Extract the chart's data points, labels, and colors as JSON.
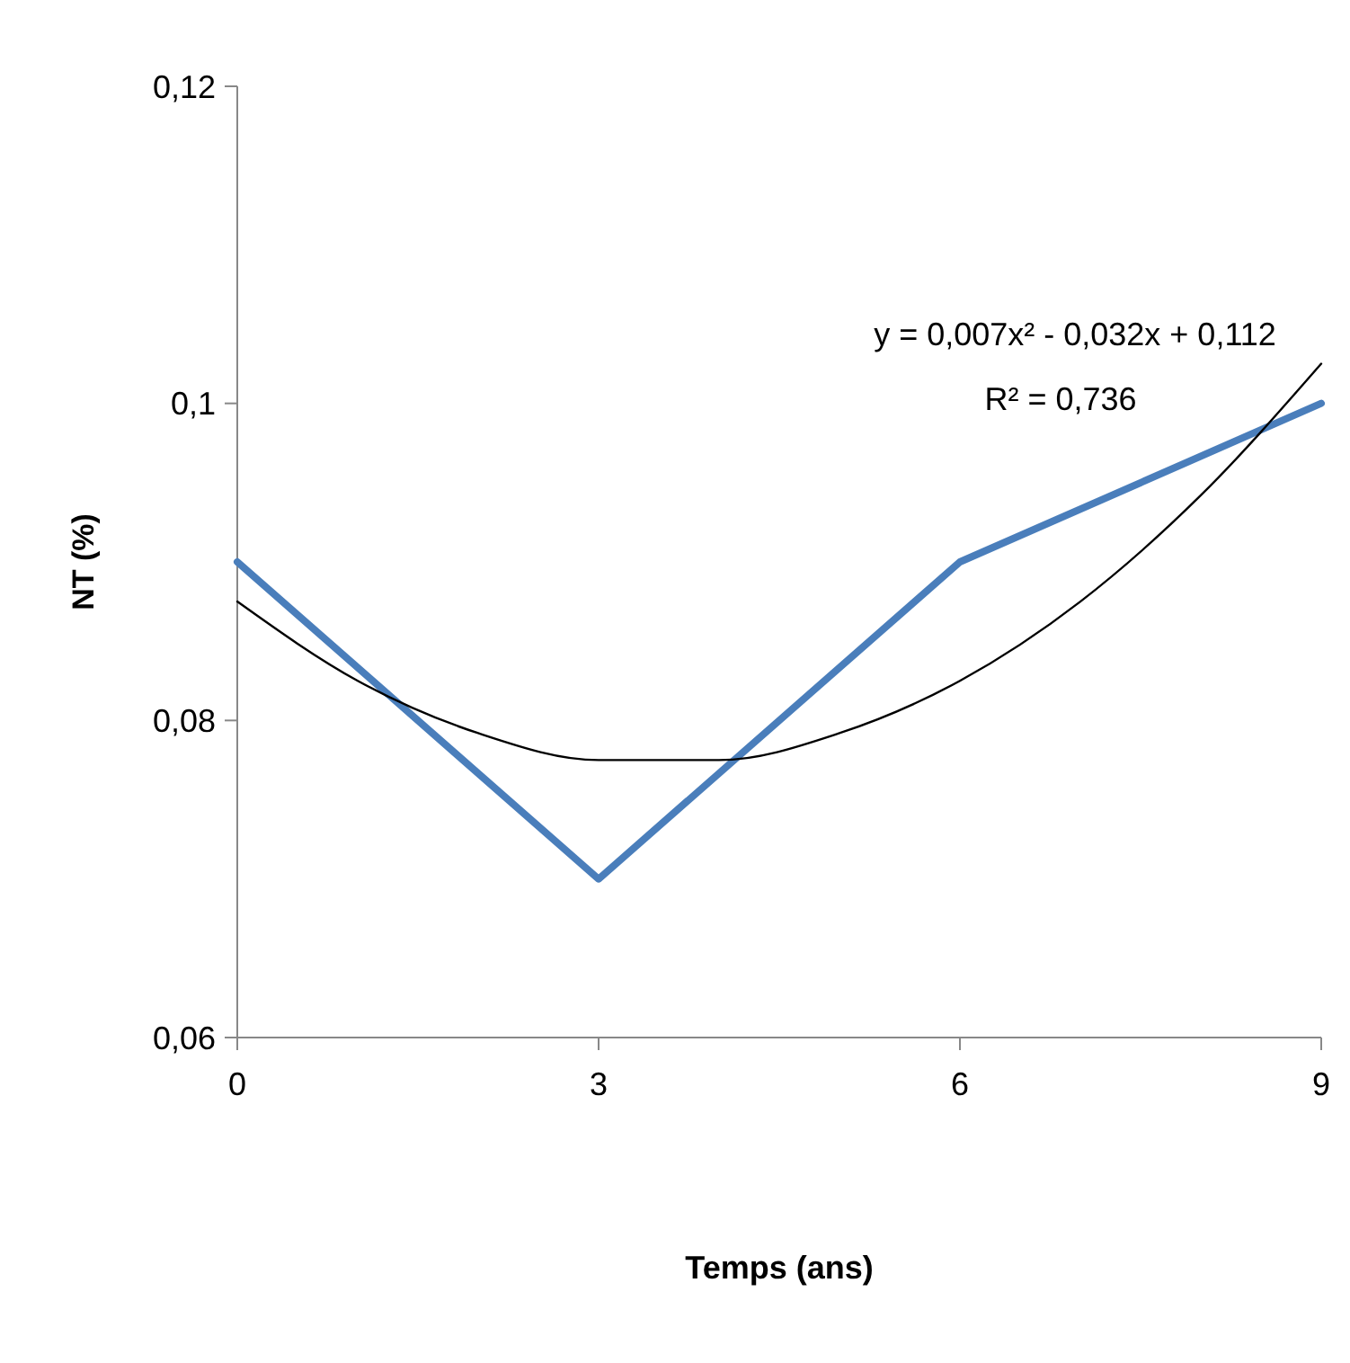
{
  "chart_data": {
    "type": "line",
    "xlabel": "Temps (ans)",
    "ylabel": "NT (%)",
    "x": [
      0,
      3,
      6,
      9
    ],
    "series": [
      {
        "color": "#4a7ebb",
        "values": [
          0.09,
          0.07,
          0.09,
          0.1
        ]
      },
      {
        "type": "line",
        "color": "#000000",
        "x": [
          0,
          1,
          2,
          3,
          4,
          5,
          6,
          7,
          8,
          9
        ],
        "values": [
          0.0875,
          0.0825,
          0.0792,
          0.0775,
          0.0775,
          0.0792,
          0.0825,
          0.0875,
          0.0942,
          0.1025
        ]
      }
    ],
    "xlim": [
      0,
      9
    ],
    "xticks": [
      0,
      3,
      6,
      9
    ],
    "ylim": [
      0.06,
      0.12
    ],
    "yticks": [
      {
        "value": 0.06,
        "label": "0,06"
      },
      {
        "value": 0.08,
        "label": "0,08"
      },
      {
        "value": 0.1,
        "label": "0,1"
      },
      {
        "value": 0.12,
        "label": "0,12"
      }
    ],
    "annotations": [
      "y = 0,007x² - 0,032x + 0,112",
      "R² = 0,736"
    ],
    "grid": false,
    "marker": "none",
    "line_style": "solid"
  }
}
